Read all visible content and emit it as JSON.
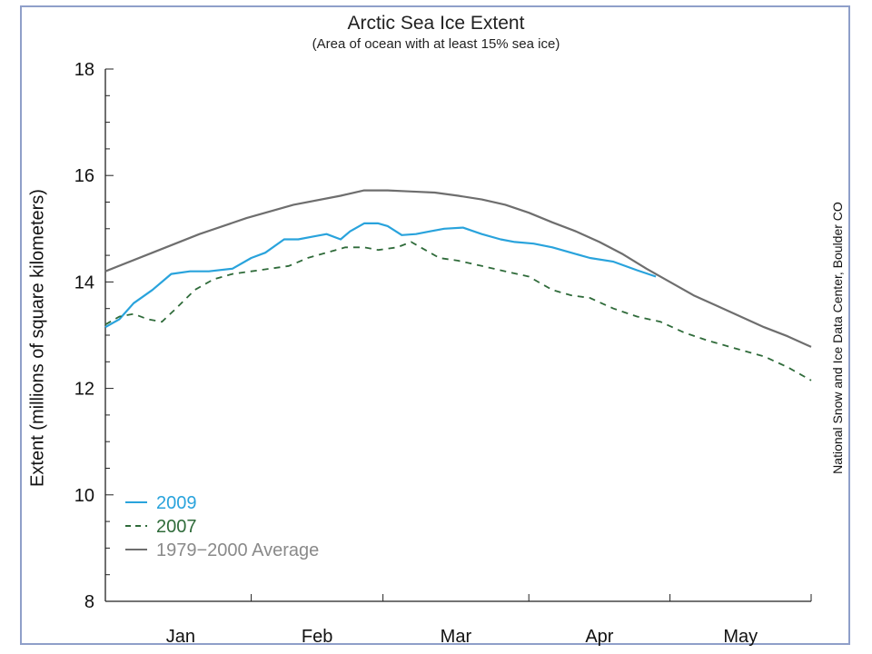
{
  "chart_data": {
    "type": "line",
    "title": "Arctic Sea Ice Extent",
    "subtitle": "(Area of ocean with at least 15% sea ice)",
    "ylabel": "Extent (millions of square kilometers)",
    "xlabel": "",
    "ylim": [
      8,
      18
    ],
    "yticks": [
      8,
      10,
      12,
      14,
      16,
      18
    ],
    "xlim": [
      0,
      150
    ],
    "month_boundaries": [
      0,
      31,
      59,
      90,
      120,
      150
    ],
    "months": [
      {
        "label": "Jan",
        "center": 16
      },
      {
        "label": "Feb",
        "center": 45
      },
      {
        "label": "Mar",
        "center": 74.5
      },
      {
        "label": "Apr",
        "center": 105
      },
      {
        "label": "May",
        "center": 135
      }
    ],
    "grid": false,
    "legend_position": "bottom-left",
    "credit": "National Snow and Ice Data Center, Boulder CO",
    "series": [
      {
        "name": "2009",
        "color": "#29a3dc",
        "style": "solid",
        "x": [
          0,
          3,
          6,
          10,
          14,
          18,
          22,
          27,
          31,
          34,
          38,
          41,
          44,
          47,
          50,
          52,
          55,
          58,
          60,
          63,
          66,
          69,
          72,
          76,
          80,
          84,
          87,
          91,
          95,
          99,
          103,
          108,
          113,
          117
        ],
        "y": [
          13.15,
          13.3,
          13.6,
          13.85,
          14.15,
          14.2,
          14.2,
          14.25,
          14.45,
          14.55,
          14.8,
          14.8,
          14.85,
          14.9,
          14.8,
          14.95,
          15.1,
          15.1,
          15.05,
          14.88,
          14.9,
          14.95,
          15.0,
          15.02,
          14.9,
          14.8,
          14.75,
          14.72,
          14.65,
          14.55,
          14.45,
          14.38,
          14.22,
          14.1
        ]
      },
      {
        "name": "2007",
        "color": "#2f6b3a",
        "style": "dashed",
        "x": [
          0,
          3,
          6,
          9,
          12,
          15,
          19,
          23,
          27,
          31,
          35,
          39,
          43,
          47,
          51,
          55,
          58,
          62,
          65,
          68,
          71,
          75,
          80,
          85,
          90,
          95,
          99,
          103,
          108,
          113,
          118,
          123,
          128,
          134,
          140,
          145,
          150
        ],
        "y": [
          13.2,
          13.35,
          13.4,
          13.3,
          13.25,
          13.5,
          13.85,
          14.05,
          14.15,
          14.2,
          14.25,
          14.3,
          14.45,
          14.55,
          14.65,
          14.65,
          14.6,
          14.65,
          14.75,
          14.6,
          14.45,
          14.4,
          14.3,
          14.2,
          14.1,
          13.85,
          13.75,
          13.7,
          13.5,
          13.35,
          13.25,
          13.05,
          12.9,
          12.75,
          12.6,
          12.4,
          12.15
        ]
      },
      {
        "name": "1979−2000 Average",
        "color": "#6e6e6e",
        "style": "solid",
        "x": [
          0,
          10,
          20,
          30,
          40,
          50,
          55,
          60,
          65,
          70,
          75,
          80,
          85,
          90,
          95,
          100,
          105,
          110,
          115,
          120,
          125,
          130,
          135,
          140,
          145,
          150
        ],
        "y": [
          14.2,
          14.55,
          14.9,
          15.2,
          15.45,
          15.62,
          15.72,
          15.72,
          15.7,
          15.68,
          15.62,
          15.55,
          15.45,
          15.3,
          15.12,
          14.95,
          14.75,
          14.52,
          14.25,
          14.0,
          13.75,
          13.55,
          13.35,
          13.15,
          12.98,
          12.78
        ]
      }
    ]
  }
}
